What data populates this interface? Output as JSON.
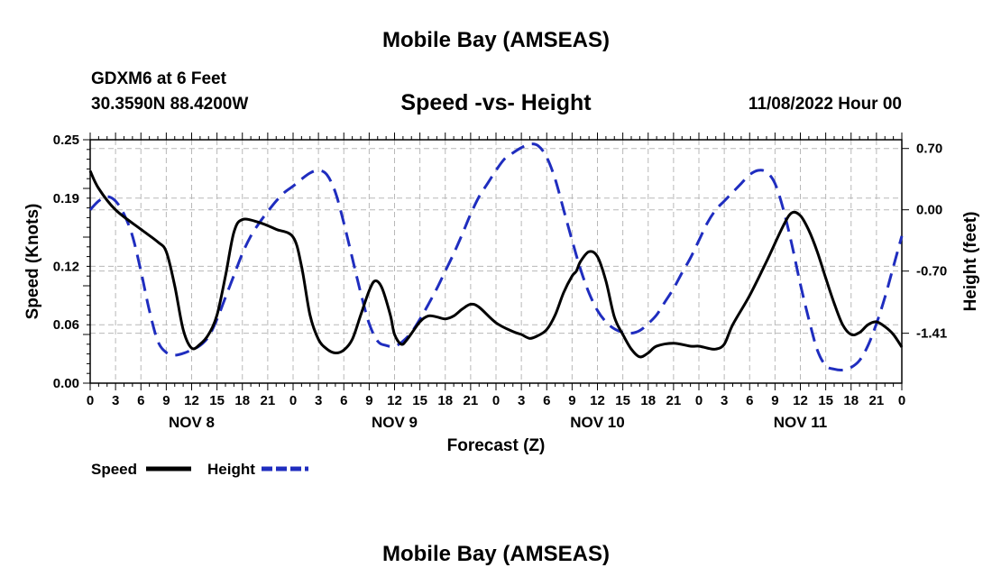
{
  "chart_data": {
    "type": "line",
    "title": "Mobile Bay (AMSEAS)",
    "footer_title": "Mobile Bay (AMSEAS)",
    "subtitle": "Speed -vs- Height",
    "station": "GDXM6 at 6 Feet",
    "location": "30.3590N  88.4200W",
    "run_time": "11/08/2022 Hour 00",
    "xlabel": "Forecast (Z)",
    "ylabel_left": "Speed (Knots)",
    "ylabel_right": "Height (feet)",
    "x_range_hours": [
      0,
      96
    ],
    "y_left_range": [
      0,
      0.25
    ],
    "y_right_range": [
      -1.98,
      0.8
    ],
    "y_left_ticks": [
      0.0,
      0.06,
      0.12,
      0.19,
      0.25
    ],
    "y_left_tick_labels": [
      "0.00",
      "0.06",
      "0.12",
      "0.19",
      "0.25"
    ],
    "y_right_ticks": [
      -1.41,
      -0.7,
      0.0,
      0.7
    ],
    "y_right_tick_labels": [
      "-1.41",
      "-0.70",
      "0.00",
      "0.70"
    ],
    "x_tick_hours": [
      0,
      3,
      6,
      9,
      12,
      15,
      18,
      21,
      24,
      27,
      30,
      33,
      36,
      39,
      42,
      45,
      48,
      51,
      54,
      57,
      60,
      63,
      66,
      69,
      72,
      75,
      78,
      81,
      84,
      87,
      90,
      93,
      96
    ],
    "x_tick_labels": [
      "0",
      "3",
      "6",
      "9",
      "12",
      "15",
      "18",
      "21",
      "0",
      "3",
      "6",
      "9",
      "12",
      "15",
      "18",
      "21",
      "0",
      "3",
      "6",
      "9",
      "12",
      "15",
      "18",
      "21",
      "0",
      "3",
      "6",
      "9",
      "12",
      "15",
      "18",
      "21",
      "0"
    ],
    "day_labels": [
      {
        "hour": 12,
        "label": "NOV 8"
      },
      {
        "hour": 36,
        "label": "NOV 9"
      },
      {
        "hour": 60,
        "label": "NOV 10"
      },
      {
        "hour": 84,
        "label": "NOV 11"
      }
    ],
    "series": [
      {
        "name": "Speed",
        "axis": "left",
        "color": "#000000",
        "style": "solid",
        "points": [
          [
            0,
            0.218
          ],
          [
            1,
            0.2
          ],
          [
            3,
            0.178
          ],
          [
            6,
            0.158
          ],
          [
            8,
            0.145
          ],
          [
            9,
            0.135
          ],
          [
            10,
            0.1
          ],
          [
            11,
            0.055
          ],
          [
            12,
            0.036
          ],
          [
            13,
            0.04
          ],
          [
            14,
            0.05
          ],
          [
            15,
            0.07
          ],
          [
            16,
            0.11
          ],
          [
            17,
            0.155
          ],
          [
            18,
            0.168
          ],
          [
            20,
            0.165
          ],
          [
            22,
            0.158
          ],
          [
            24,
            0.15
          ],
          [
            25,
            0.12
          ],
          [
            26,
            0.07
          ],
          [
            27,
            0.045
          ],
          [
            28,
            0.035
          ],
          [
            29,
            0.031
          ],
          [
            30,
            0.034
          ],
          [
            31,
            0.045
          ],
          [
            32,
            0.07
          ],
          [
            33,
            0.095
          ],
          [
            33.7,
            0.105
          ],
          [
            34.5,
            0.098
          ],
          [
            35.5,
            0.07
          ],
          [
            36,
            0.05
          ],
          [
            36.8,
            0.04
          ],
          [
            37.5,
            0.045
          ],
          [
            39,
            0.063
          ],
          [
            40,
            0.069
          ],
          [
            41,
            0.068
          ],
          [
            42,
            0.066
          ],
          [
            43,
            0.069
          ],
          [
            44,
            0.076
          ],
          [
            45,
            0.081
          ],
          [
            46,
            0.078
          ],
          [
            48,
            0.062
          ],
          [
            50,
            0.053
          ],
          [
            51,
            0.05
          ],
          [
            52,
            0.046
          ],
          [
            53,
            0.049
          ],
          [
            54,
            0.055
          ],
          [
            55,
            0.07
          ],
          [
            56,
            0.093
          ],
          [
            57,
            0.11
          ],
          [
            57.5,
            0.115
          ],
          [
            58,
            0.125
          ],
          [
            59,
            0.135
          ],
          [
            60,
            0.13
          ],
          [
            61,
            0.105
          ],
          [
            62,
            0.068
          ],
          [
            63,
            0.05
          ],
          [
            64,
            0.035
          ],
          [
            65,
            0.027
          ],
          [
            66,
            0.031
          ],
          [
            67,
            0.038
          ],
          [
            69,
            0.041
          ],
          [
            71,
            0.038
          ],
          [
            72,
            0.038
          ],
          [
            73,
            0.036
          ],
          [
            74,
            0.035
          ],
          [
            75,
            0.04
          ],
          [
            76,
            0.06
          ],
          [
            78,
            0.09
          ],
          [
            80,
            0.125
          ],
          [
            82,
            0.162
          ],
          [
            83,
            0.175
          ],
          [
            84,
            0.172
          ],
          [
            85,
            0.157
          ],
          [
            86,
            0.135
          ],
          [
            87,
            0.108
          ],
          [
            88,
            0.082
          ],
          [
            89,
            0.06
          ],
          [
            90,
            0.05
          ],
          [
            91,
            0.052
          ],
          [
            92,
            0.06
          ],
          [
            93,
            0.063
          ],
          [
            94,
            0.058
          ],
          [
            95,
            0.05
          ],
          [
            96,
            0.037
          ]
        ]
      },
      {
        "name": "Height",
        "axis": "right",
        "color": "#1f2dbf",
        "style": "dashed",
        "points": [
          [
            0,
            0.0
          ],
          [
            1,
            0.1
          ],
          [
            2,
            0.15
          ],
          [
            3,
            0.1
          ],
          [
            4,
            -0.05
          ],
          [
            5,
            -0.3
          ],
          [
            6,
            -0.7
          ],
          [
            7,
            -1.15
          ],
          [
            8,
            -1.5
          ],
          [
            9,
            -1.63
          ],
          [
            10,
            -1.66
          ],
          [
            11,
            -1.64
          ],
          [
            12,
            -1.6
          ],
          [
            13,
            -1.55
          ],
          [
            14,
            -1.45
          ],
          [
            15,
            -1.25
          ],
          [
            16,
            -1.0
          ],
          [
            17,
            -0.75
          ],
          [
            18,
            -0.5
          ],
          [
            19,
            -0.3
          ],
          [
            20,
            -0.15
          ],
          [
            21,
            -0.02
          ],
          [
            22,
            0.1
          ],
          [
            23,
            0.2
          ],
          [
            24,
            0.27
          ],
          [
            25,
            0.35
          ],
          [
            26,
            0.42
          ],
          [
            27,
            0.45
          ],
          [
            28,
            0.4
          ],
          [
            29,
            0.2
          ],
          [
            30,
            -0.15
          ],
          [
            31,
            -0.55
          ],
          [
            32,
            -0.95
          ],
          [
            33,
            -1.3
          ],
          [
            34,
            -1.5
          ],
          [
            35,
            -1.55
          ],
          [
            36,
            -1.56
          ],
          [
            37,
            -1.5
          ],
          [
            38,
            -1.4
          ],
          [
            39,
            -1.25
          ],
          [
            40,
            -1.08
          ],
          [
            41,
            -0.9
          ],
          [
            42,
            -0.7
          ],
          [
            43,
            -0.5
          ],
          [
            44,
            -0.28
          ],
          [
            45,
            -0.05
          ],
          [
            46,
            0.15
          ],
          [
            47,
            0.3
          ],
          [
            48,
            0.45
          ],
          [
            49,
            0.58
          ],
          [
            50,
            0.65
          ],
          [
            51,
            0.71
          ],
          [
            52,
            0.75
          ],
          [
            53,
            0.73
          ],
          [
            54,
            0.6
          ],
          [
            55,
            0.35
          ],
          [
            56,
            0.0
          ],
          [
            57,
            -0.35
          ],
          [
            58,
            -0.68
          ],
          [
            59,
            -0.95
          ],
          [
            60,
            -1.15
          ],
          [
            61,
            -1.28
          ],
          [
            62,
            -1.36
          ],
          [
            63,
            -1.4
          ],
          [
            64,
            -1.41
          ],
          [
            65,
            -1.38
          ],
          [
            66,
            -1.3
          ],
          [
            67,
            -1.2
          ],
          [
            68,
            -1.05
          ],
          [
            69,
            -0.9
          ],
          [
            70,
            -0.72
          ],
          [
            71,
            -0.55
          ],
          [
            72,
            -0.35
          ],
          [
            73,
            -0.15
          ],
          [
            74,
            0.0
          ],
          [
            75,
            0.1
          ],
          [
            76,
            0.2
          ],
          [
            77,
            0.3
          ],
          [
            78,
            0.4
          ],
          [
            79,
            0.45
          ],
          [
            80,
            0.43
          ],
          [
            81,
            0.3
          ],
          [
            82,
            0.0
          ],
          [
            83,
            -0.4
          ],
          [
            84,
            -0.85
          ],
          [
            85,
            -1.25
          ],
          [
            86,
            -1.6
          ],
          [
            87,
            -1.78
          ],
          [
            88,
            -1.82
          ],
          [
            89,
            -1.83
          ],
          [
            90,
            -1.8
          ],
          [
            91,
            -1.72
          ],
          [
            92,
            -1.55
          ],
          [
            93,
            -1.3
          ],
          [
            94,
            -1.0
          ],
          [
            95,
            -0.65
          ],
          [
            96,
            -0.3
          ]
        ]
      }
    ],
    "legend": [
      {
        "label": "Speed",
        "color": "#000000",
        "style": "solid"
      },
      {
        "label": "Height",
        "color": "#1f2dbf",
        "style": "dashed"
      }
    ],
    "legend_position": "bottom-left",
    "grid": true
  }
}
